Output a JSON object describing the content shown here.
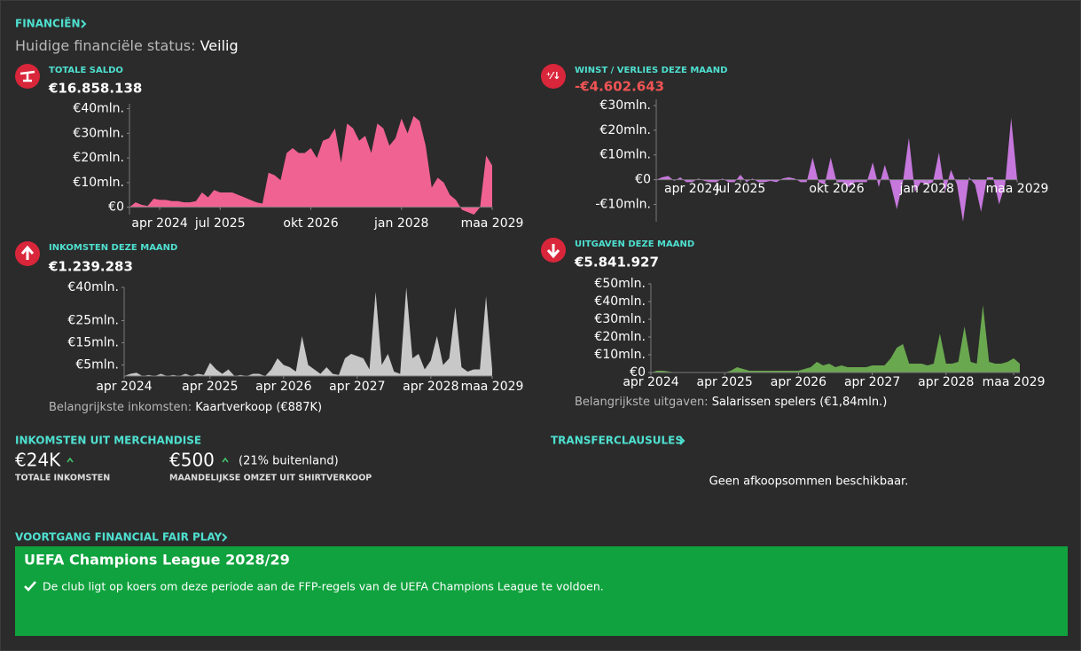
{
  "header": {
    "title": "FINANCIËN",
    "status_label": "Huidige financiële status:",
    "status_value": "Veilig"
  },
  "panels": [
    {
      "title": "TOTALE SALDO",
      "value": "€16.858.138",
      "chart": {
        "type": "area",
        "color": "#f06292",
        "values": [
          0,
          2,
          1,
          0.5,
          3.5,
          3,
          3,
          2.5,
          2.5,
          2,
          2,
          2.5,
          6,
          4,
          7,
          6,
          6,
          6,
          5,
          4,
          3,
          2,
          1.5,
          14,
          13,
          11,
          22,
          24,
          22,
          22,
          24,
          20,
          27,
          28,
          32,
          18,
          34,
          32,
          27,
          29,
          22,
          34,
          32,
          25,
          28,
          36,
          30,
          37,
          35,
          25,
          8,
          12,
          10,
          5,
          3,
          -1,
          -2,
          -3,
          0,
          21,
          17
        ],
        "xlim": [
          0,
          60
        ],
        "xticks": [
          {
            "value": 5,
            "label": "apr 2024"
          },
          {
            "value": 15,
            "label": "jul 2025"
          },
          {
            "value": 30,
            "label": "okt 2026"
          },
          {
            "value": 45,
            "label": "jan 2028"
          },
          {
            "value": 60,
            "label": "maa 2029"
          }
        ],
        "ylim": [
          -3,
          42
        ],
        "yticks": [
          {
            "value": 0,
            "label": "€0"
          },
          {
            "value": 10,
            "label": "€10mln."
          },
          {
            "value": 20,
            "label": "€20mln."
          },
          {
            "value": 30,
            "label": "€30mln."
          },
          {
            "value": 40,
            "label": "€40mln."
          }
        ]
      }
    },
    {
      "title": "WINST / VERLIES DEZE MAAND",
      "value": "-€4.602.643",
      "chart": {
        "type": "area",
        "color": "#c678dd",
        "values": [
          0,
          1,
          1.5,
          -0.5,
          1,
          -1,
          -1,
          0.5,
          -0.5,
          -1,
          -1,
          0.5,
          -1,
          -1,
          2,
          -1,
          0.5,
          -1,
          -1,
          -0.5,
          -1,
          0.5,
          1,
          0.5,
          -1,
          -1,
          9,
          -1,
          -2,
          9,
          -1,
          -1,
          -3,
          -1,
          -1,
          -1,
          7,
          -3,
          6,
          -2,
          -12,
          -1,
          17,
          -5,
          -1,
          -2,
          -1,
          11,
          -5,
          4,
          -2,
          -17,
          1,
          -2,
          -13,
          1,
          1,
          -10,
          -2,
          25,
          0
        ],
        "xlim": [
          0,
          60
        ],
        "xticks": [
          {
            "value": 6,
            "label": "apr 2024"
          },
          {
            "value": 14,
            "label": "jul 2025"
          },
          {
            "value": 30,
            "label": "okt 2026"
          },
          {
            "value": 45,
            "label": "jan 2028"
          },
          {
            "value": 60,
            "label": "maa 2029"
          }
        ],
        "ylim": [
          -17,
          32.5
        ],
        "yticks": [
          {
            "value": -10,
            "label": "-€10mln."
          },
          {
            "value": 0,
            "label": "€0"
          },
          {
            "value": 10,
            "label": "€10mln."
          },
          {
            "value": 20,
            "label": "€20mln."
          },
          {
            "value": 30,
            "label": "€30mln."
          }
        ]
      }
    },
    {
      "title": "INKOMSTEN DEZE MAAND",
      "value": "€1.239.283",
      "footer_label": "Belangrijkste inkomsten:",
      "footer_value": "Kaartverkoop (€887K)",
      "chart": {
        "type": "area",
        "color": "#c8c8c8",
        "values": [
          0,
          1,
          1.5,
          0,
          0.5,
          0,
          1,
          0,
          0.5,
          0,
          1,
          0,
          1,
          0.5,
          6,
          3,
          1,
          3,
          0,
          0.5,
          0,
          1,
          1,
          0,
          3,
          8,
          5,
          4,
          2,
          18,
          5,
          3,
          1,
          4,
          1,
          0.5,
          8,
          10,
          9,
          8,
          3,
          38,
          5,
          10,
          2,
          1,
          40,
          8,
          10,
          3,
          7,
          18,
          5,
          8,
          31,
          4,
          2,
          3,
          3,
          36,
          3
        ],
        "xlim": [
          0,
          60
        ],
        "xticks": [
          {
            "value": 0,
            "label": "apr 2024"
          },
          {
            "value": 14,
            "label": "apr 2025"
          },
          {
            "value": 26,
            "label": "apr 2026"
          },
          {
            "value": 38,
            "label": "apr 2027"
          },
          {
            "value": 50,
            "label": "apr 2028"
          },
          {
            "value": 60,
            "label": "maa 2029"
          }
        ],
        "ylim": [
          0,
          40
        ],
        "yticks": [
          {
            "value": 5,
            "label": "€5mln."
          },
          {
            "value": 15,
            "label": "€15mln."
          },
          {
            "value": 25,
            "label": "€25mln."
          },
          {
            "value": 40,
            "label": "€40mln."
          }
        ]
      }
    },
    {
      "title": "UITGAVEN DEZE MAAND",
      "value": "€5.841.927",
      "footer_label": "Belangrijkste uitgaven:",
      "footer_value": "Salarissen spelers (€1,84mln.)",
      "chart": {
        "type": "area",
        "color": "#6aa84f",
        "values": [
          0,
          1,
          1,
          0.5,
          0,
          0,
          0,
          0,
          0,
          0,
          0,
          0,
          0,
          1,
          3,
          2,
          1,
          1,
          1,
          1,
          1,
          1,
          1,
          1,
          1,
          2,
          3,
          6,
          4,
          5,
          3,
          4,
          3,
          3,
          3,
          3,
          4,
          4,
          4,
          8,
          14,
          16,
          5,
          5,
          5,
          4,
          5,
          22,
          5,
          5,
          6,
          26,
          6,
          5,
          38,
          6,
          5,
          5,
          6,
          8,
          5
        ],
        "xlim": [
          0,
          60
        ],
        "xticks": [
          {
            "value": 0,
            "label": "apr 2024"
          },
          {
            "value": 12,
            "label": "apr 2025"
          },
          {
            "value": 24,
            "label": "apr 2026"
          },
          {
            "value": 36,
            "label": "apr 2027"
          },
          {
            "value": 48,
            "label": "apr 2028"
          },
          {
            "value": 59,
            "label": "maa 2029"
          }
        ],
        "ylim": [
          0,
          50
        ],
        "yticks": [
          {
            "value": 0,
            "label": "€0"
          },
          {
            "value": 10,
            "label": "€10mln."
          },
          {
            "value": 20,
            "label": "€20mln."
          },
          {
            "value": 30,
            "label": "€30mln."
          },
          {
            "value": 40,
            "label": "€40mln."
          },
          {
            "value": 50,
            "label": "€50mln."
          }
        ]
      }
    }
  ],
  "merchandise": {
    "title": "INKOMSTEN UIT MERCHANDISE",
    "items": [
      {
        "value": "€24K",
        "label": "TOTALE INKOMSTEN"
      },
      {
        "value": "€500",
        "note": "(21% buitenland)",
        "label": "MAANDELIJKSE OMZET UIT SHIRTVERKOOP"
      }
    ]
  },
  "transfer": {
    "title": "TRANSFERCLAUSULES",
    "message": "Geen afkoopsommen beschikbaar."
  },
  "ffp": {
    "title": "VOORTGANG FINANCIAL FAIR PLAY",
    "competition": "UEFA Champions League 2028/29",
    "message": "De club ligt op koers om deze periode aan de FFP-regels van de UEFA Champions League te voldoen."
  }
}
